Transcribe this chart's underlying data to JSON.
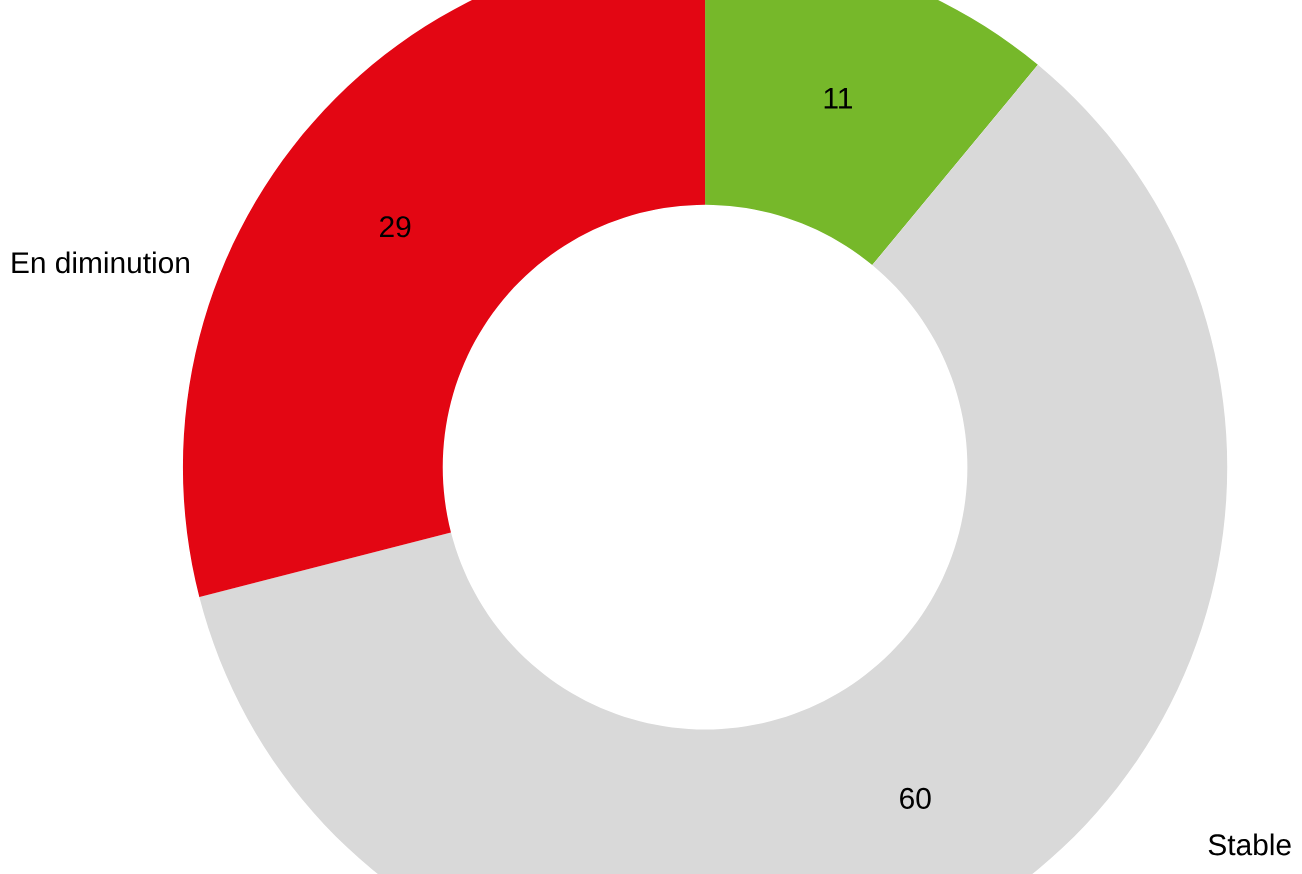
{
  "chart_data": {
    "type": "donut",
    "categories": [
      null,
      "Stable",
      "En diminution"
    ],
    "values": [
      11,
      60,
      29
    ],
    "colors": [
      "#76b82a",
      "#d9d9d9",
      "#e30613"
    ],
    "data_labels": true
  }
}
